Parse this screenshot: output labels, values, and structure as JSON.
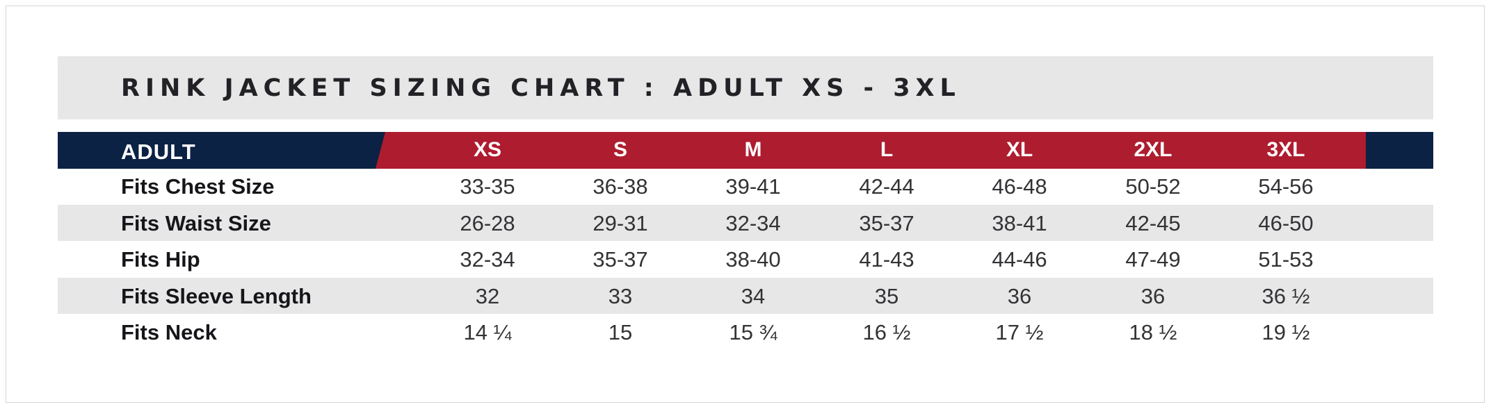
{
  "title": "RINK JACKET SIZING CHART : ADULT XS - 3XL",
  "header": {
    "label": "ADULT",
    "sizes": [
      "XS",
      "S",
      "M",
      "L",
      "XL",
      "2XL",
      "3XL"
    ]
  },
  "rows": [
    {
      "label": "Fits Chest Size",
      "values": [
        "33-35",
        "36-38",
        "39-41",
        "42-44",
        "46-48",
        "50-52",
        "54-56"
      ]
    },
    {
      "label": "Fits Waist Size",
      "values": [
        "26-28",
        "29-31",
        "32-34",
        "35-37",
        "38-41",
        "42-45",
        "46-50"
      ]
    },
    {
      "label": "Fits Hip",
      "values": [
        "32-34",
        "35-37",
        "38-40",
        "41-43",
        "44-46",
        "47-49",
        "51-53"
      ]
    },
    {
      "label": "Fits Sleeve Length",
      "values": [
        "32",
        "33",
        "34",
        "35",
        "36",
        "36",
        "36 ½"
      ]
    },
    {
      "label": "Fits Neck",
      "values": [
        "14 ¼",
        "15",
        "15 ¾",
        "16 ½",
        "17 ½",
        "18 ½",
        "19 ½"
      ]
    }
  ],
  "colors": {
    "navy": "#0b2244",
    "red": "#ae1c2f",
    "band_gray": "#e7e7e8"
  }
}
